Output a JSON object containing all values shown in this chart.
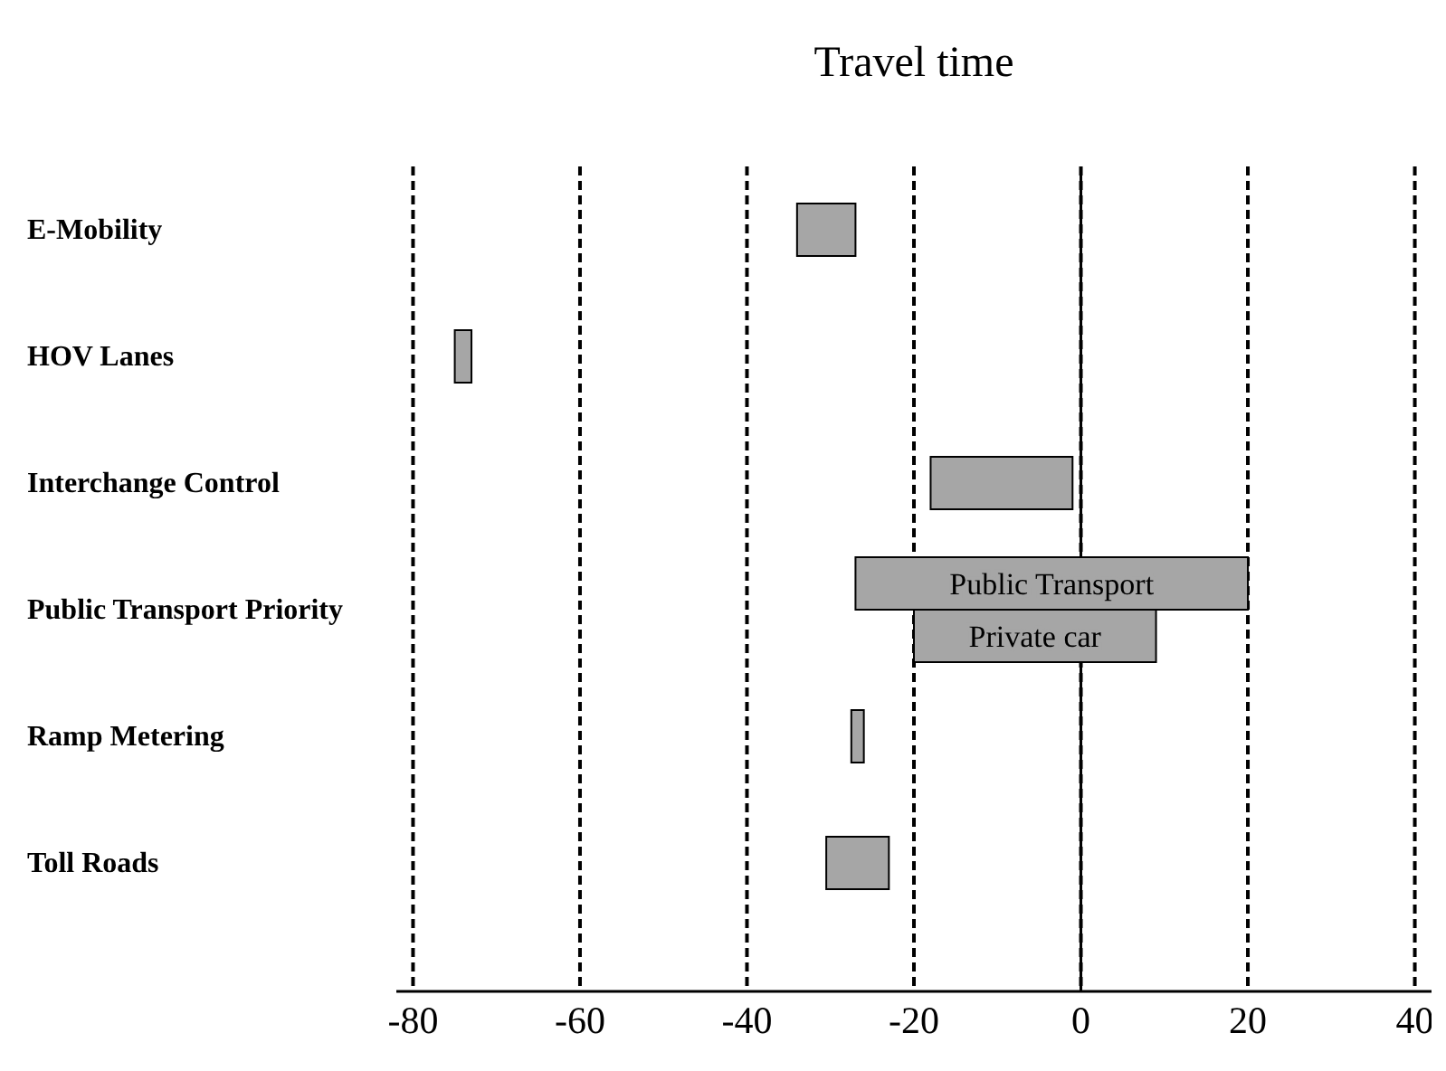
{
  "chart_data": {
    "type": "bar",
    "orientation": "horizontal",
    "title": "Travel time",
    "categories": [
      "E-Mobility",
      "HOV Lanes",
      "Interchange Control",
      "Public Transport Priority",
      "Ramp Metering",
      "Toll Roads"
    ],
    "series": [
      {
        "color": "#a6a6a6",
        "base": [
          -34,
          -75,
          -18,
          null,
          -27.5,
          -30.5
        ],
        "values": [
          7,
          2,
          17,
          null,
          1.5,
          7.5
        ]
      },
      {
        "name": "Public Transport",
        "color": "#a6a6a6",
        "base": [
          null,
          null,
          null,
          -27,
          null,
          null
        ],
        "values": [
          null,
          null,
          null,
          47,
          null,
          null
        ]
      },
      {
        "name": "Private car",
        "color": "#a6a6a6",
        "base": [
          null,
          null,
          null,
          -20,
          null,
          null
        ],
        "values": [
          null,
          null,
          null,
          29,
          null,
          null
        ]
      }
    ],
    "xlim": [
      -82,
      42
    ],
    "xticks": [
      -80,
      -60,
      -40,
      -20,
      0,
      20,
      40
    ],
    "grid": "x",
    "ref_lines": [
      {
        "axis": "x",
        "value": 0,
        "line_style": "solid"
      }
    ]
  }
}
